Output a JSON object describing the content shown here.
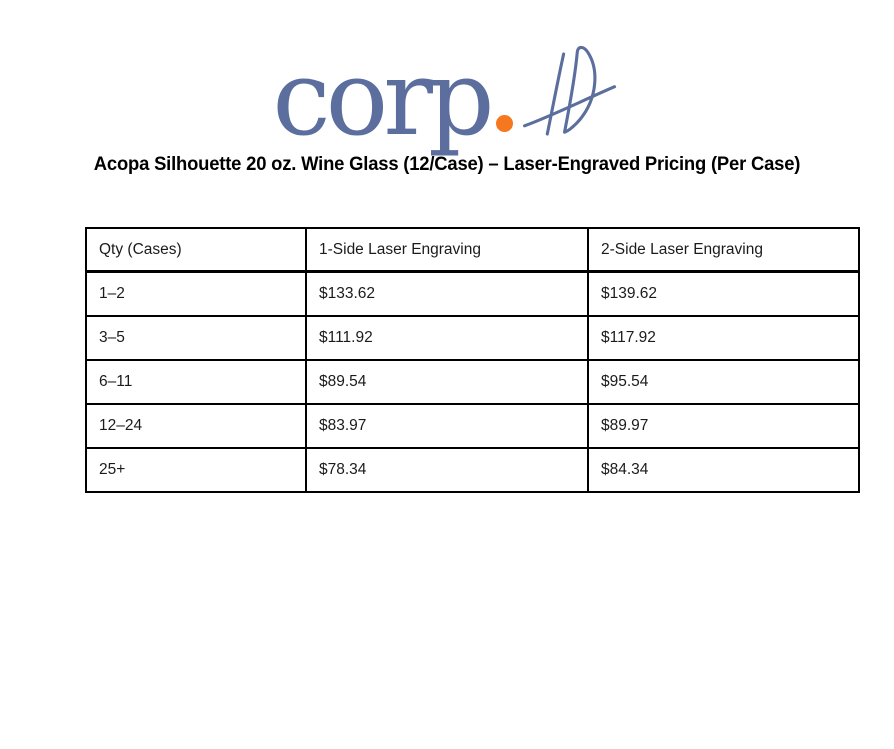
{
  "logo": {
    "wordmark": "corp",
    "suffix": "ID",
    "blue": "#5b6e9e",
    "orange": "#f5771e"
  },
  "title": "Acopa Silhouette 20 oz. Wine Glass (12/Case) – Laser-Engraved Pricing (Per Case)",
  "pricing_table": {
    "columns": [
      "Qty (Cases)",
      "1-Side Laser Engraving",
      "2-Side Laser Engraving"
    ],
    "rows": [
      [
        "1–2",
        "$133.62",
        "$139.62"
      ],
      [
        "3–5",
        "$111.92",
        "$117.92"
      ],
      [
        "6–11",
        "$89.54",
        "$95.54"
      ],
      [
        "12–24",
        "$83.97",
        "$89.97"
      ],
      [
        "25+",
        "$78.34",
        "$84.34"
      ]
    ]
  }
}
